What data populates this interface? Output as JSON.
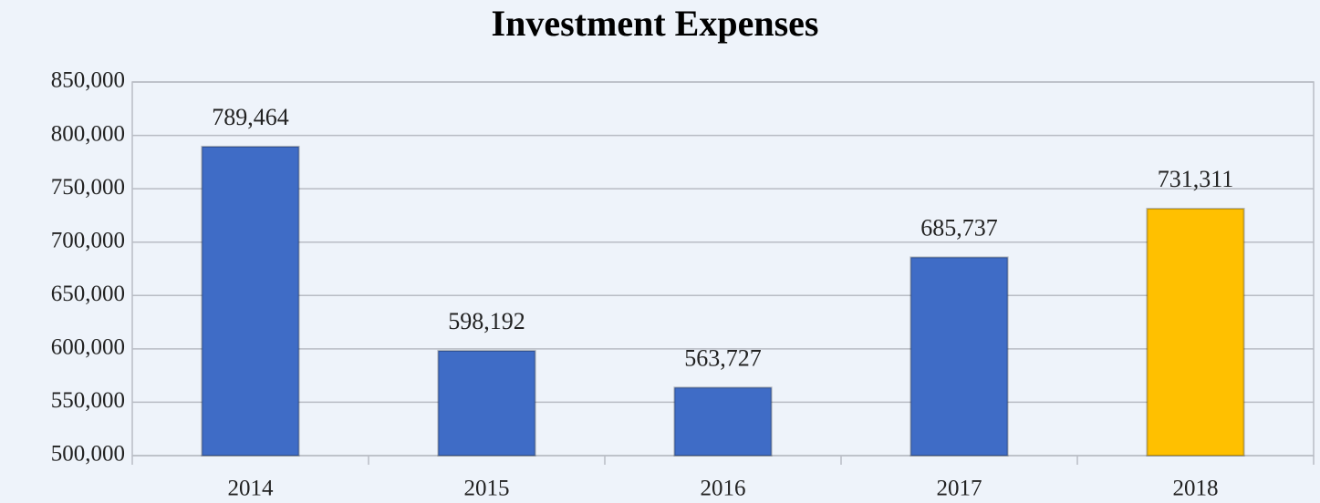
{
  "chart_data": {
    "type": "bar",
    "title": "Investment Expenses",
    "categories": [
      "2014",
      "2015",
      "2016",
      "2017",
      "2018"
    ],
    "values": [
      789464,
      598192,
      563727,
      685737,
      731311
    ],
    "value_labels": [
      "789,464",
      "598,192",
      "563,727",
      "685,737",
      "731,311"
    ],
    "colors": [
      "#3f6cc6",
      "#3f6cc6",
      "#3f6cc6",
      "#3f6cc6",
      "#ffc000"
    ],
    "ylim": [
      500000,
      850000
    ],
    "yticks": [
      {
        "value": 500000,
        "label": "500,000"
      },
      {
        "value": 550000,
        "label": "550,000"
      },
      {
        "value": 600000,
        "label": "600,000"
      },
      {
        "value": 650000,
        "label": "650,000"
      },
      {
        "value": 700000,
        "label": "700,000"
      },
      {
        "value": 750000,
        "label": "750,000"
      },
      {
        "value": 800000,
        "label": "800,000"
      },
      {
        "value": 850000,
        "label": "850,000"
      }
    ],
    "grid": true
  }
}
